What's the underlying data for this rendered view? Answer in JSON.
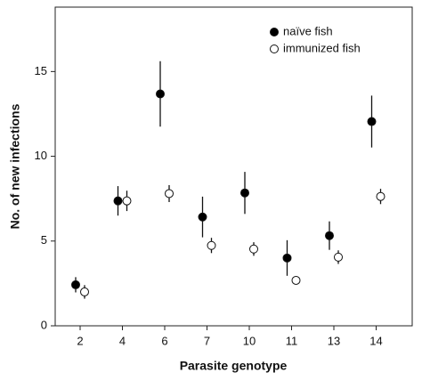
{
  "chart_data": {
    "type": "dot-error",
    "xlabel": "Parasite genotype",
    "ylabel": "No. of new infections",
    "categories": [
      "2",
      "4",
      "6",
      "7",
      "10",
      "11",
      "13",
      "14"
    ],
    "series": [
      {
        "name": "naïve fish",
        "color": "#000000",
        "values": [
          2.42,
          7.37,
          13.68,
          6.42,
          7.84,
          4.0,
          5.32,
          12.05
        ],
        "errors": [
          0.45,
          0.87,
          1.93,
          1.2,
          1.24,
          1.05,
          0.84,
          1.53
        ]
      },
      {
        "name": "immunized fish",
        "color": "#ffffff",
        "values": [
          2.0,
          7.37,
          7.8,
          4.74,
          4.53,
          2.68,
          4.05,
          7.63
        ],
        "errors": [
          0.4,
          0.6,
          0.5,
          0.45,
          0.4,
          0.15,
          0.4,
          0.45
        ]
      }
    ],
    "ylim": [
      0,
      18.8
    ],
    "yticks": [
      0,
      5,
      10,
      15
    ],
    "grid": false,
    "legend": "upper right"
  }
}
